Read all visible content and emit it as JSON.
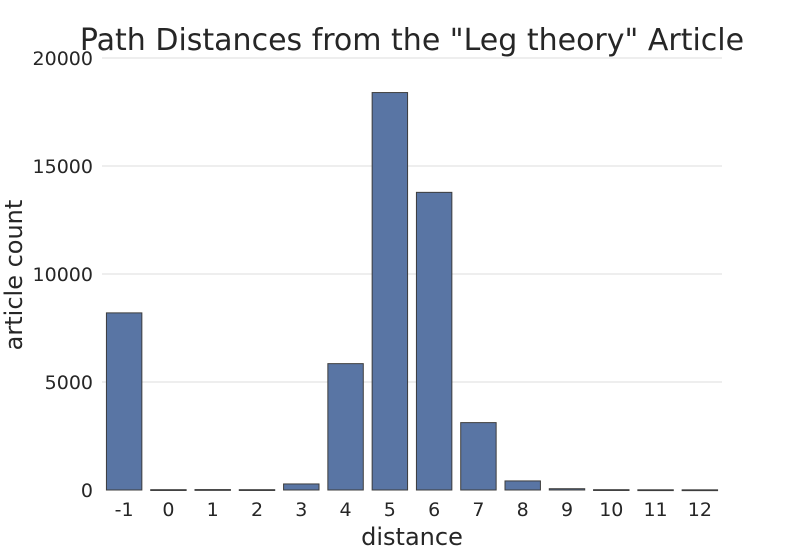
{
  "chart_data": {
    "type": "bar",
    "title": "Path Distances from the \"Leg theory\" Article",
    "xlabel": "distance",
    "ylabel": "article count",
    "categories": [
      "-1",
      "0",
      "1",
      "2",
      "3",
      "4",
      "5",
      "6",
      "7",
      "8",
      "9",
      "10",
      "11",
      "12"
    ],
    "values": [
      8200,
      15,
      20,
      15,
      280,
      5850,
      18400,
      13780,
      3120,
      420,
      60,
      15,
      10,
      8
    ],
    "ylim": [
      0,
      20000
    ],
    "yticks": [
      "0",
      "5000",
      "10000",
      "15000",
      "20000"
    ],
    "grid": true,
    "bar_color": "#5975a4",
    "edge_color": "#3d3d3d",
    "grid_color": "#dddddd"
  }
}
